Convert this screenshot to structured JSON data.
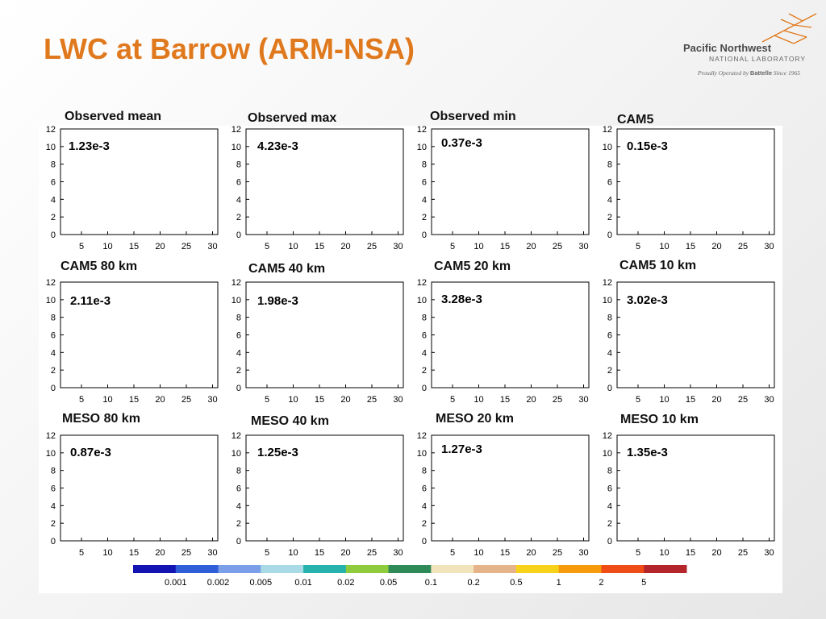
{
  "slide": {
    "title": "LWC at Barrow (ARM-NSA)"
  },
  "logo": {
    "name": "Pacific Northwest",
    "sub": "NATIONAL LABORATORY",
    "tag_prefix": "Proudly Operated by",
    "tag_brand": "Battelle",
    "tag_suffix": "Since 1965"
  },
  "colors": {
    "title": "#e0791d"
  },
  "chart_data": {
    "type": "heatmap",
    "x_ticks": [
      5,
      10,
      15,
      20,
      25,
      30
    ],
    "y_ticks": [
      0,
      2,
      4,
      6,
      8,
      10,
      12
    ],
    "xlim": [
      1,
      31
    ],
    "ylim": [
      0,
      12
    ],
    "panels": [
      {
        "title": "Observed mean",
        "value": "1.23e-3"
      },
      {
        "title": "Observed max",
        "value": "4.23e-3"
      },
      {
        "title": "Observed min",
        "value": "0.37e-3"
      },
      {
        "title": "CAM5",
        "value": "0.15e-3"
      },
      {
        "title": "CAM5 80 km",
        "value": "2.11e-3"
      },
      {
        "title": "CAM5 40 km",
        "value": "1.98e-3"
      },
      {
        "title": "CAM5 20 km",
        "value": "3.28e-3"
      },
      {
        "title": "CAM5 10 km",
        "value": "3.02e-3"
      },
      {
        "title": "MESO 80 km",
        "value": "0.87e-3"
      },
      {
        "title": "MESO 40 km",
        "value": "1.25e-3"
      },
      {
        "title": "MESO 20 km",
        "value": "1.27e-3"
      },
      {
        "title": "MESO 10 km",
        "value": "1.35e-3"
      }
    ],
    "colorbar": {
      "labels": [
        "0.001",
        "0.002",
        "0.005",
        "0.01",
        "0.02",
        "0.05",
        "0.1",
        "0.2",
        "0.5",
        "1",
        "2",
        "5"
      ],
      "colors": [
        "#1414b4",
        "#2f5ed8",
        "#7a9ee8",
        "#a8dbe6",
        "#26b3ad",
        "#8fcb3c",
        "#2e8b57",
        "#f1e3bc",
        "#e6b48a",
        "#f6d21a",
        "#f79a0b",
        "#ef4c16",
        "#b4262b"
      ]
    }
  }
}
